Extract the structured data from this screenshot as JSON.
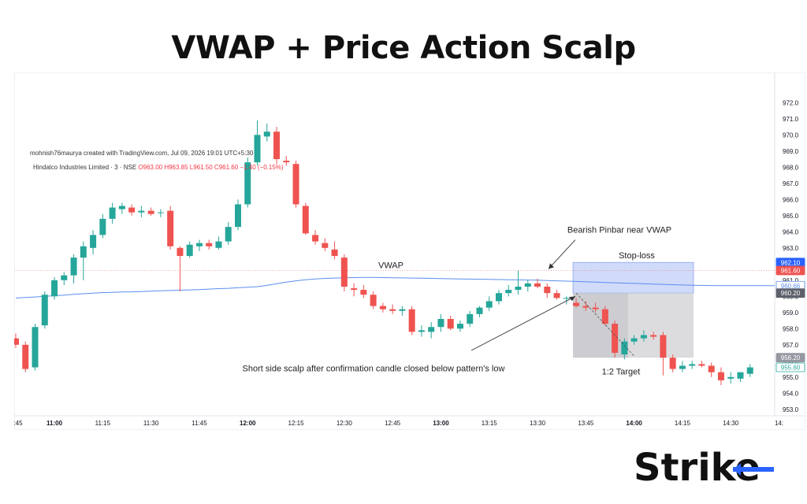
{
  "page": {
    "title": "VWAP + Price Action Scalp"
  },
  "header": {
    "credit": "mohnish76maurya created with TradingView.com, Jul 09, 2026 19:01 UTC+5:30",
    "symbol": "Hindalco Industries Limited · 3 · NSE",
    "ohlc": "O963.00  H963.85  L961.50  C961.60  −1.40 (−0.15%)"
  },
  "brand": {
    "text": "Strike",
    "accent": "#2962ff"
  },
  "colors": {
    "up": "#26a69a",
    "down": "#ef5350",
    "vwap": "#5b8def",
    "stop_zone": "#a9bdf5",
    "target_zone": "#d6d6d9"
  },
  "annotations": {
    "vwap_label": "VWAP",
    "pinbar_label": "Bearish Pinbar near VWAP",
    "stop_label": "Stop-loss",
    "target_label": "1:2 Target",
    "scalp_label": "Short side scalp after confirmation candle closed below pattern's low"
  },
  "chart_data": {
    "type": "candlestick",
    "y_axis": {
      "range": [
        952.6,
        972.6
      ],
      "ticks": [
        953,
        954,
        955,
        956,
        957,
        958,
        959,
        960,
        961,
        962,
        963,
        964,
        965,
        966,
        967,
        968,
        969,
        970,
        971,
        972
      ]
    },
    "x_axis": {
      "ticks": [
        ":45",
        "11:00",
        "11:15",
        "11:30",
        "11:45",
        "12:00",
        "12:15",
        "12:30",
        "12:45",
        "13:00",
        "13:15",
        "13:30",
        "13:45",
        "14:00",
        "14:15",
        "14:30",
        "14:"
      ]
    },
    "price_labels": [
      {
        "value": "962.10",
        "color": "#2962ff"
      },
      {
        "value": "961.60",
        "color": "#ef5350"
      },
      {
        "value": "960.66",
        "color": "#5b8def"
      },
      {
        "value": "960.20",
        "color": "#5d606b"
      },
      {
        "value": "956.20",
        "color": "#9598a1"
      },
      {
        "value": "955.60",
        "color": "#26a69a"
      }
    ],
    "candles": [
      [
        957.4,
        957.7,
        956.8,
        957.0
      ],
      [
        957.0,
        957.2,
        955.3,
        955.5
      ],
      [
        955.6,
        958.3,
        955.4,
        958.1
      ],
      [
        958.2,
        960.3,
        958.0,
        960.1
      ],
      [
        960.0,
        961.2,
        959.8,
        961.0
      ],
      [
        961.0,
        961.5,
        960.7,
        961.3
      ],
      [
        961.3,
        962.6,
        960.8,
        962.4
      ],
      [
        962.4,
        963.4,
        961.0,
        963.1
      ],
      [
        963.0,
        964.1,
        962.6,
        963.8
      ],
      [
        963.8,
        965.1,
        963.6,
        964.8
      ],
      [
        964.8,
        965.8,
        964.5,
        965.5
      ],
      [
        965.4,
        965.8,
        965.1,
        965.6
      ],
      [
        965.5,
        965.7,
        965.0,
        965.2
      ],
      [
        965.2,
        965.6,
        964.9,
        965.3
      ],
      [
        965.3,
        965.5,
        965.0,
        965.1
      ],
      [
        965.2,
        965.4,
        964.9,
        965.2
      ],
      [
        965.3,
        965.6,
        962.9,
        963.1
      ],
      [
        963.0,
        963.1,
        960.3,
        962.5
      ],
      [
        962.5,
        963.4,
        962.4,
        963.2
      ],
      [
        963.1,
        963.5,
        962.8,
        963.3
      ],
      [
        963.3,
        963.5,
        962.9,
        963.1
      ],
      [
        963.0,
        963.7,
        962.9,
        963.4
      ],
      [
        963.4,
        964.6,
        963.2,
        964.3
      ],
      [
        964.3,
        966.0,
        964.1,
        965.7
      ],
      [
        965.7,
        968.6,
        965.5,
        968.3
      ],
      [
        968.3,
        970.9,
        968.1,
        970.0
      ],
      [
        969.9,
        970.7,
        969.6,
        970.2
      ],
      [
        970.2,
        970.5,
        968.2,
        968.5
      ],
      [
        968.4,
        968.7,
        968.1,
        968.3
      ],
      [
        968.2,
        968.4,
        965.5,
        965.7
      ],
      [
        965.6,
        965.8,
        963.8,
        963.9
      ],
      [
        963.8,
        964.1,
        963.2,
        963.4
      ],
      [
        963.3,
        963.6,
        962.8,
        963.0
      ],
      [
        962.9,
        963.4,
        962.3,
        962.5
      ],
      [
        962.4,
        962.6,
        960.3,
        960.6
      ],
      [
        960.5,
        960.8,
        960.0,
        960.4
      ],
      [
        960.4,
        960.7,
        959.9,
        960.1
      ],
      [
        960.1,
        960.3,
        959.2,
        959.4
      ],
      [
        959.4,
        959.6,
        959.0,
        959.2
      ],
      [
        959.2,
        959.5,
        958.9,
        959.1
      ],
      [
        959.1,
        959.4,
        958.8,
        959.2
      ],
      [
        959.2,
        959.4,
        957.6,
        957.8
      ],
      [
        957.8,
        958.2,
        957.5,
        957.9
      ],
      [
        957.8,
        958.4,
        957.4,
        958.1
      ],
      [
        958.1,
        958.9,
        957.8,
        958.6
      ],
      [
        958.6,
        958.8,
        957.9,
        958.0
      ],
      [
        958.0,
        958.5,
        957.8,
        958.3
      ],
      [
        958.3,
        959.1,
        958.1,
        958.9
      ],
      [
        958.9,
        959.4,
        958.7,
        959.3
      ],
      [
        959.3,
        960.0,
        959.1,
        959.7
      ],
      [
        959.7,
        960.4,
        959.5,
        960.2
      ],
      [
        960.2,
        960.7,
        960.0,
        960.4
      ],
      [
        960.4,
        961.6,
        960.1,
        960.6
      ],
      [
        960.6,
        961.0,
        960.3,
        960.8
      ],
      [
        960.8,
        961.1,
        960.5,
        960.6
      ],
      [
        960.6,
        960.8,
        959.9,
        960.2
      ],
      [
        960.2,
        960.4,
        959.8,
        959.9
      ],
      [
        959.9,
        960.0,
        959.5,
        959.9
      ],
      [
        959.6,
        959.9,
        959.3,
        959.4
      ],
      [
        959.4,
        959.7,
        959.1,
        959.3
      ],
      [
        959.3,
        959.6,
        959.0,
        959.2
      ],
      [
        959.2,
        959.4,
        958.2,
        958.3
      ],
      [
        958.3,
        958.5,
        956.2,
        956.5
      ],
      [
        956.4,
        957.4,
        956.1,
        957.2
      ],
      [
        957.2,
        957.6,
        957.0,
        957.4
      ],
      [
        957.4,
        957.9,
        957.2,
        957.6
      ],
      [
        957.6,
        957.8,
        957.3,
        957.5
      ],
      [
        957.6,
        957.8,
        955.1,
        956.2
      ],
      [
        956.2,
        956.4,
        955.3,
        955.5
      ],
      [
        955.5,
        956.0,
        955.3,
        955.7
      ],
      [
        955.7,
        956.0,
        955.5,
        955.8
      ],
      [
        955.8,
        956.0,
        955.6,
        955.7
      ],
      [
        955.7,
        955.9,
        955.0,
        955.3
      ],
      [
        955.3,
        955.6,
        954.5,
        954.8
      ],
      [
        954.9,
        955.3,
        954.6,
        955.0
      ],
      [
        954.9,
        955.3,
        954.7,
        955.3
      ],
      [
        955.2,
        955.8,
        955.0,
        955.6
      ]
    ],
    "vwap": [
      959.9,
      959.93,
      959.96,
      960.0,
      960.04,
      960.08,
      960.12,
      960.16,
      960.2,
      960.23,
      960.25,
      960.27,
      960.28,
      960.3,
      960.32,
      960.34,
      960.36,
      960.38,
      960.4,
      960.42,
      960.45,
      960.48,
      960.5,
      960.53,
      960.56,
      960.6,
      960.68,
      960.78,
      960.88,
      960.96,
      961.03,
      961.08,
      961.11,
      961.13,
      961.15,
      961.16,
      961.17,
      961.17,
      961.16,
      961.15,
      961.14,
      961.13,
      961.12,
      961.11,
      961.1,
      961.09,
      961.08,
      961.07,
      961.06,
      961.05,
      961.04,
      961.03,
      961.02,
      961.01,
      961.0,
      960.98,
      960.96,
      960.94,
      960.92,
      960.9,
      960.88,
      960.86,
      960.84,
      960.82,
      960.8,
      960.78,
      960.76,
      960.74,
      960.72,
      960.7,
      960.69,
      960.68,
      960.67,
      960.66,
      960.66,
      960.66,
      960.66
    ],
    "zones": {
      "stop_loss": {
        "from": 960.2,
        "to": 962.1
      },
      "target": {
        "from": 956.2,
        "to": 960.2
      },
      "entry": 960.2
    }
  }
}
